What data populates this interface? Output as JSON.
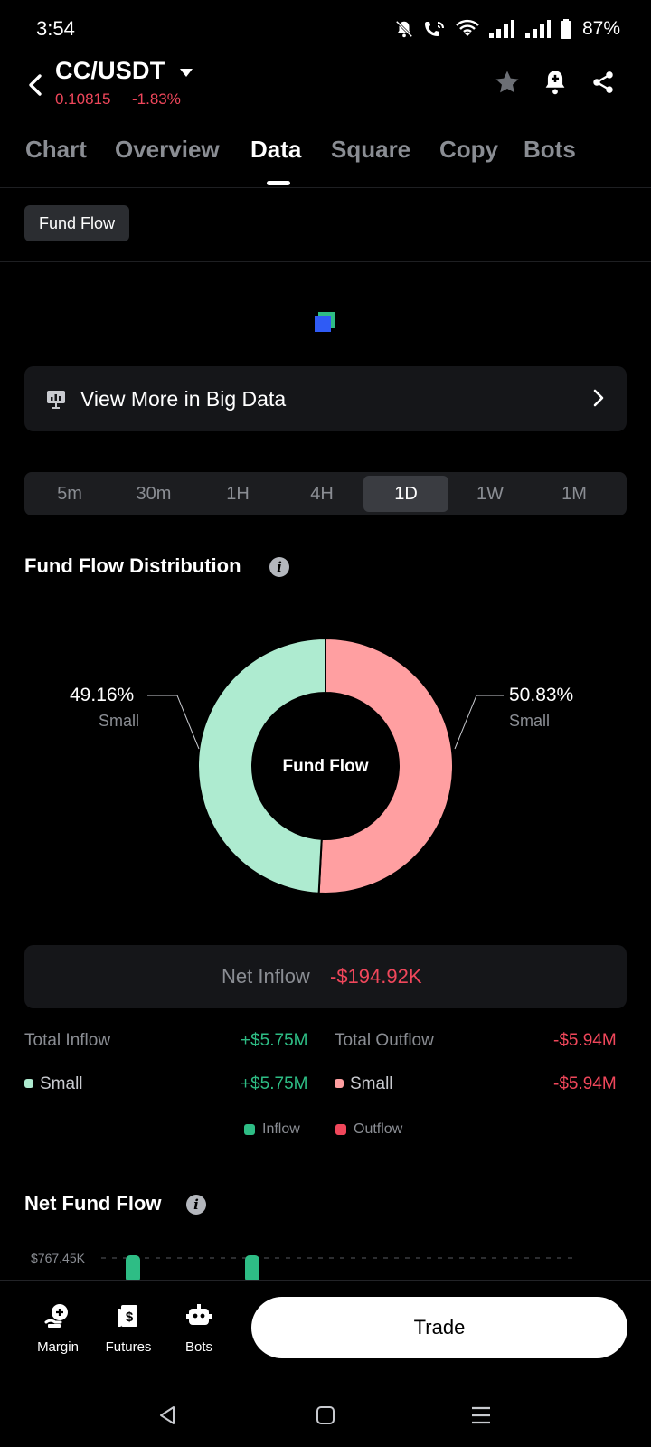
{
  "status": {
    "time": "3:54",
    "battery": "87%"
  },
  "header": {
    "pair": "CC/USDT",
    "price": "0.10815",
    "change": "-1.83%"
  },
  "tabs": [
    "Chart",
    "Overview",
    "Data",
    "Square",
    "Copy",
    "Bots"
  ],
  "active_tab": "Data",
  "chip": "Fund Flow",
  "big_data": {
    "label": "View More in Big Data"
  },
  "periods": [
    "5m",
    "30m",
    "1H",
    "4H",
    "1D",
    "1W",
    "1M"
  ],
  "active_period": "1D",
  "distribution": {
    "title": "Fund Flow Distribution",
    "center_label": "Fund Flow",
    "left": {
      "pct": "49.16%",
      "label": "Small"
    },
    "right": {
      "pct": "50.83%",
      "label": "Small"
    }
  },
  "chart_data": {
    "type": "pie",
    "title": "Fund Flow Distribution",
    "slices": [
      {
        "name": "Small",
        "kind": "Outflow",
        "value": 50.83,
        "color": "#ff9fa1"
      },
      {
        "name": "Small",
        "kind": "Inflow",
        "value": 49.16,
        "color": "#aeebd0"
      }
    ]
  },
  "net_inflow": {
    "label": "Net Inflow",
    "value": "-$194.92K"
  },
  "totals": {
    "inflow_label": "Total Inflow",
    "inflow_value": "+$5.75M",
    "outflow_label": "Total Outflow",
    "outflow_value": "-$5.94M",
    "small_in_label": "Small",
    "small_in_value": "+$5.75M",
    "small_out_label": "Small",
    "small_out_value": "-$5.94M"
  },
  "legend": {
    "inflow": "Inflow",
    "outflow": "Outflow"
  },
  "net_fund_flow": {
    "title": "Net Fund Flow",
    "y_tick": "$767.45K"
  },
  "bottom_nav": {
    "margin": "Margin",
    "futures": "Futures",
    "bots": "Bots",
    "trade": "Trade"
  },
  "colors": {
    "green": "#2ebd85",
    "red": "#f0475b",
    "donut_green": "#aeebd0",
    "donut_red": "#ff9fa1"
  }
}
